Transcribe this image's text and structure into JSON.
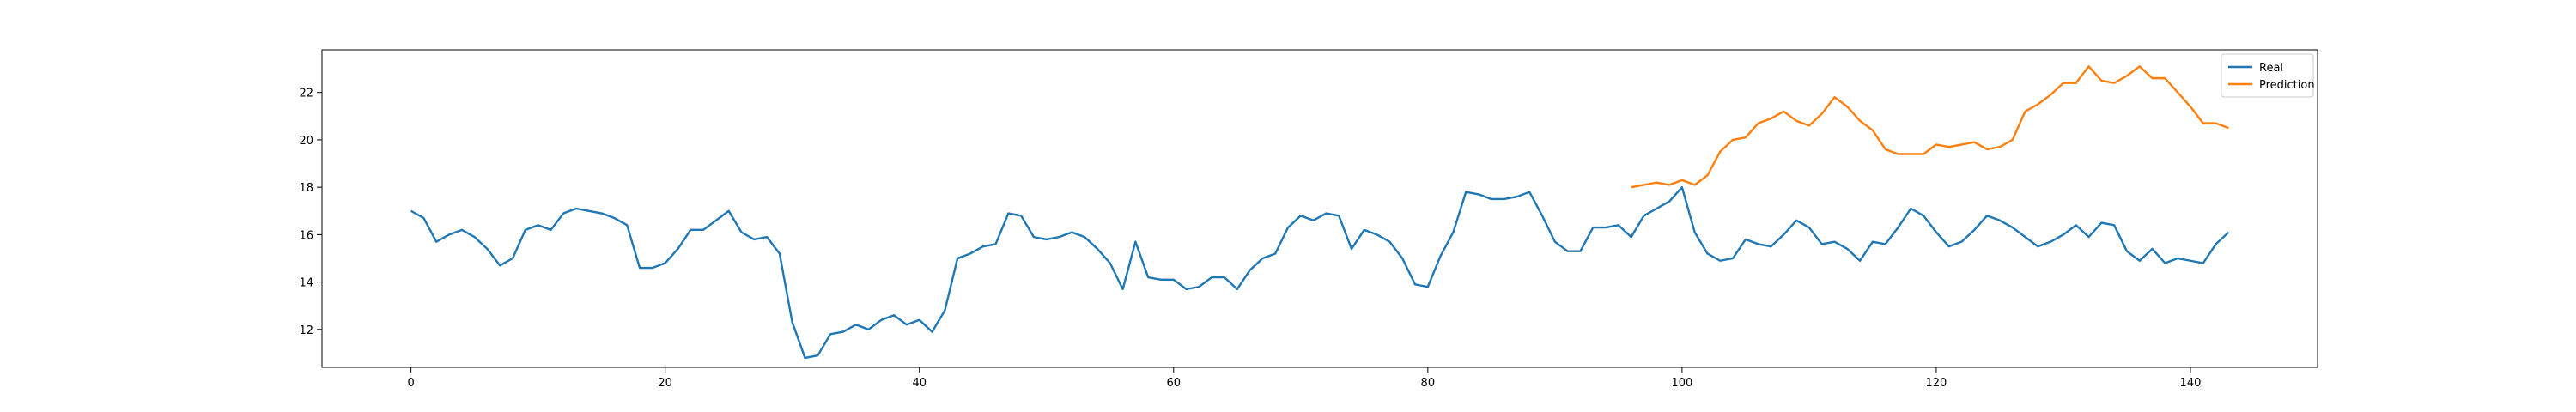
{
  "chart_data": {
    "type": "line",
    "title": "",
    "xlabel": "",
    "ylabel": "",
    "xlim": [
      -7,
      150
    ],
    "ylim": [
      10.4,
      23.8
    ],
    "xticks": [
      0,
      20,
      40,
      60,
      80,
      100,
      120,
      140
    ],
    "yticks": [
      12,
      14,
      16,
      18,
      20,
      22
    ],
    "grid": false,
    "legend_position": "top-right",
    "series": [
      {
        "name": "Real",
        "color": "#1f77b4",
        "x": [
          0,
          1,
          2,
          3,
          4,
          5,
          6,
          7,
          8,
          9,
          10,
          11,
          12,
          13,
          14,
          15,
          16,
          17,
          18,
          19,
          20,
          21,
          22,
          23,
          24,
          25,
          26,
          27,
          28,
          29,
          30,
          31,
          32,
          33,
          34,
          35,
          36,
          37,
          38,
          39,
          40,
          41,
          42,
          43,
          44,
          45,
          46,
          47,
          48,
          49,
          50,
          51,
          52,
          53,
          54,
          55,
          56,
          57,
          58,
          59,
          60,
          61,
          62,
          63,
          64,
          65,
          66,
          67,
          68,
          69,
          70,
          71,
          72,
          73,
          74,
          75,
          76,
          77,
          78,
          79,
          80,
          81,
          82,
          83,
          84,
          85,
          86,
          87,
          88,
          89,
          90,
          91,
          92,
          93,
          94,
          95,
          96,
          97,
          98,
          99,
          100,
          101,
          102,
          103,
          104,
          105,
          106,
          107,
          108,
          109,
          110,
          111,
          112,
          113,
          114,
          115,
          116,
          117,
          118,
          119,
          120,
          121,
          122,
          123,
          124,
          125,
          126,
          127,
          128,
          129,
          130,
          131,
          132,
          133,
          134,
          135,
          136,
          137,
          138,
          139,
          140,
          141,
          142,
          143
        ],
        "values": [
          17.0,
          16.7,
          15.7,
          16.0,
          16.2,
          15.9,
          15.4,
          14.7,
          15.0,
          16.2,
          16.4,
          16.2,
          16.9,
          17.1,
          17.0,
          16.9,
          16.7,
          16.4,
          14.6,
          14.6,
          14.8,
          15.4,
          16.2,
          16.2,
          16.6,
          17.0,
          16.1,
          15.8,
          15.9,
          15.2,
          12.3,
          10.8,
          10.9,
          11.8,
          11.9,
          12.2,
          12.0,
          12.4,
          12.6,
          12.2,
          12.4,
          11.9,
          12.8,
          15.0,
          15.2,
          15.5,
          15.6,
          16.9,
          16.8,
          15.9,
          15.8,
          15.9,
          16.1,
          15.9,
          15.4,
          14.8,
          13.7,
          15.7,
          14.2,
          14.1,
          14.1,
          13.7,
          13.8,
          14.2,
          14.2,
          13.7,
          14.5,
          15.0,
          15.2,
          16.3,
          16.8,
          16.6,
          16.9,
          16.8,
          15.4,
          16.2,
          16.0,
          15.7,
          15.0,
          13.9,
          13.8,
          15.1,
          16.1,
          17.8,
          17.7,
          17.5,
          17.5,
          17.6,
          17.8,
          16.8,
          15.7,
          15.3,
          15.3,
          16.3,
          16.3,
          16.4,
          15.9,
          16.8,
          17.1,
          17.4,
          18.0,
          16.1,
          15.2,
          14.9,
          15.0,
          15.8,
          15.6,
          15.5,
          16.0,
          16.6,
          16.3,
          15.6,
          15.7,
          15.4,
          14.9,
          15.7,
          15.6,
          16.3,
          17.1,
          16.8,
          16.1,
          15.5,
          15.7,
          16.2,
          16.8,
          16.6,
          16.3,
          15.9,
          15.5,
          15.7,
          16.0,
          16.4,
          15.9,
          16.5,
          16.4,
          15.3,
          14.9,
          15.4,
          14.8,
          15.0,
          14.9,
          14.8,
          15.6,
          16.1
        ]
      },
      {
        "name": "Prediction",
        "color": "#ff7f0e",
        "x": [
          96,
          97,
          98,
          99,
          100,
          101,
          102,
          103,
          104,
          105,
          106,
          107,
          108,
          109,
          110,
          111,
          112,
          113,
          114,
          115,
          116,
          117,
          118,
          119,
          120,
          121,
          122,
          123,
          124,
          125,
          126,
          127,
          128,
          129,
          130,
          131,
          132,
          133,
          134,
          135,
          136,
          137,
          138,
          139,
          140,
          141,
          142,
          143
        ],
        "values": [
          18.0,
          18.1,
          18.2,
          18.1,
          18.3,
          18.1,
          18.5,
          19.5,
          20.0,
          20.1,
          20.7,
          20.9,
          21.2,
          20.8,
          20.6,
          21.1,
          21.8,
          21.4,
          20.8,
          20.4,
          19.6,
          19.4,
          19.4,
          19.4,
          19.8,
          19.7,
          19.8,
          19.9,
          19.6,
          19.7,
          20.0,
          21.2,
          21.5,
          21.9,
          22.4,
          22.4,
          23.1,
          22.5,
          22.4,
          22.7,
          23.1,
          22.6,
          22.6,
          22.0,
          21.4,
          20.7,
          20.7,
          20.5
        ]
      }
    ]
  }
}
